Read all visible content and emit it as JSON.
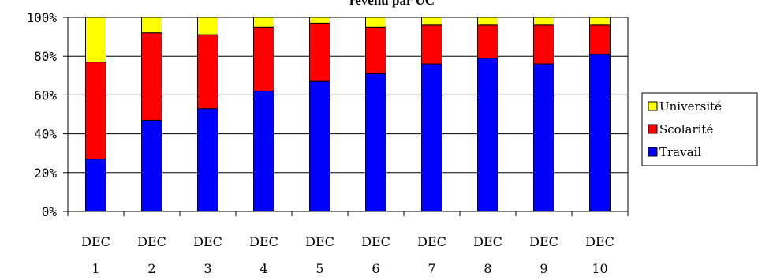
{
  "chart_data": {
    "type": "bar",
    "stacked": true,
    "title": "revenu par UC",
    "categories": [
      [
        "DEC",
        "1"
      ],
      [
        "DEC",
        "2"
      ],
      [
        "DEC",
        "3"
      ],
      [
        "DEC",
        "4"
      ],
      [
        "DEC",
        "5"
      ],
      [
        "DEC",
        "6"
      ],
      [
        "DEC",
        "7"
      ],
      [
        "DEC",
        "8"
      ],
      [
        "DEC",
        "9"
      ],
      [
        "DEC",
        "10"
      ]
    ],
    "ylim": [
      0,
      100
    ],
    "yticks": [
      "0%",
      "20%",
      "40%",
      "60%",
      "80%",
      "100%"
    ],
    "grid": true,
    "legend_position": "right",
    "series": [
      {
        "name": "Travail",
        "color": "#0000ff",
        "values": [
          27,
          47,
          53,
          62,
          67,
          71,
          76,
          79,
          76,
          81
        ]
      },
      {
        "name": "Scolarité",
        "color": "#ff0000",
        "values": [
          50,
          45,
          38,
          33,
          30,
          24,
          20,
          17,
          20,
          15
        ]
      },
      {
        "name": "Université",
        "color": "#ffff00",
        "values": [
          23,
          8,
          9,
          5,
          3,
          5,
          4,
          4,
          4,
          4
        ]
      }
    ],
    "legend_order": [
      "Université",
      "Scolarité",
      "Travail"
    ]
  }
}
